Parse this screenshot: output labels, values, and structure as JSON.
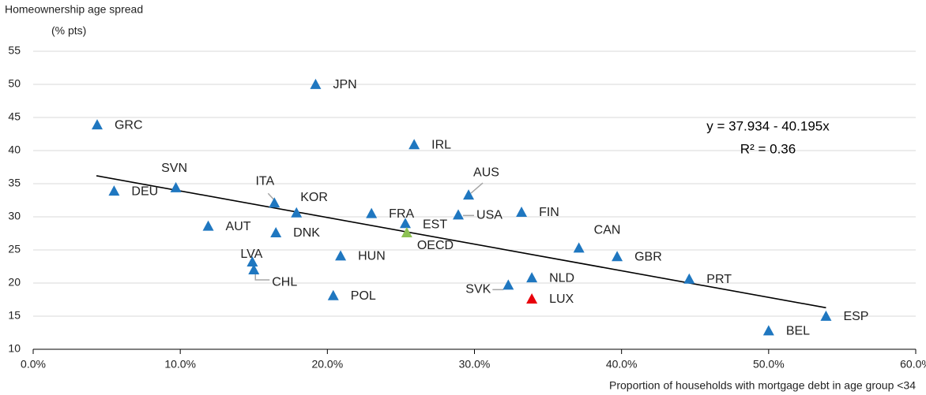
{
  "chart_data": {
    "type": "scatter",
    "ylabel": [
      "Homeownership age spread",
      "(% pts)"
    ],
    "xlabel": "Proportion of households with mortgage debt in age group <34",
    "xlim": [
      0,
      60
    ],
    "xticks": [
      {
        "value": 0,
        "label": "0.0%"
      },
      {
        "value": 10,
        "label": "10.0%"
      },
      {
        "value": 20,
        "label": "20.0%"
      },
      {
        "value": 30,
        "label": "30.0%"
      },
      {
        "value": 40,
        "label": "40.0%"
      },
      {
        "value": 50,
        "label": "50.0%"
      },
      {
        "value": 60,
        "label": "60.0%"
      }
    ],
    "ylim": [
      10,
      55
    ],
    "yticks": [
      10,
      15,
      20,
      25,
      30,
      35,
      40,
      45,
      50,
      55
    ],
    "grid": true,
    "points": [
      {
        "label": "GRC",
        "x": 4.35,
        "y": 43.8,
        "color": "#1f77c0"
      },
      {
        "label": "DEU",
        "x": 5.5,
        "y": 33.8,
        "color": "#1f77c0"
      },
      {
        "label": "SVN",
        "x": 9.7,
        "y": 34.3,
        "color": "#1f77c0"
      },
      {
        "label": "JPN",
        "x": 19.2,
        "y": 49.9,
        "color": "#1f77c0"
      },
      {
        "label": "IRL",
        "x": 25.9,
        "y": 40.8,
        "color": "#1f77c0"
      },
      {
        "label": "ITA",
        "x": 16.4,
        "y": 32.0,
        "color": "#1f77c0"
      },
      {
        "label": "KOR",
        "x": 17.9,
        "y": 30.5,
        "color": "#1f77c0"
      },
      {
        "label": "AUT",
        "x": 11.9,
        "y": 28.5,
        "color": "#1f77c0"
      },
      {
        "label": "DNK",
        "x": 16.5,
        "y": 27.5,
        "color": "#1f77c0"
      },
      {
        "label": "LVA",
        "x": 14.9,
        "y": 23.1,
        "color": "#1f77c0"
      },
      {
        "label": "CHL",
        "x": 15.0,
        "y": 21.9,
        "color": "#1f77c0"
      },
      {
        "label": "HUN",
        "x": 20.9,
        "y": 24.0,
        "color": "#1f77c0"
      },
      {
        "label": "POL",
        "x": 20.4,
        "y": 18.0,
        "color": "#1f77c0"
      },
      {
        "label": "FRA",
        "x": 23.0,
        "y": 30.4,
        "color": "#1f77c0"
      },
      {
        "label": "EST",
        "x": 25.3,
        "y": 28.9,
        "color": "#1f77c0"
      },
      {
        "label": "OECD",
        "x": 25.4,
        "y": 27.5,
        "color": "#8dc153"
      },
      {
        "label": "AUS",
        "x": 29.6,
        "y": 33.2,
        "color": "#1f77c0"
      },
      {
        "label": "USA",
        "x": 28.9,
        "y": 30.2,
        "color": "#1f77c0"
      },
      {
        "label": "FIN",
        "x": 33.2,
        "y": 30.6,
        "color": "#1f77c0"
      },
      {
        "label": "CAN",
        "x": 37.1,
        "y": 25.2,
        "color": "#1f77c0"
      },
      {
        "label": "GBR",
        "x": 39.7,
        "y": 23.9,
        "color": "#1f77c0"
      },
      {
        "label": "SVK",
        "x": 32.3,
        "y": 19.6,
        "color": "#1f77c0"
      },
      {
        "label": "NLD",
        "x": 33.9,
        "y": 20.7,
        "color": "#1f77c0"
      },
      {
        "label": "LUX",
        "x": 33.9,
        "y": 17.5,
        "color": "#e8000b"
      },
      {
        "label": "PRT",
        "x": 44.6,
        "y": 20.5,
        "color": "#1f77c0"
      },
      {
        "label": "BEL",
        "x": 50.0,
        "y": 12.7,
        "color": "#1f77c0"
      },
      {
        "label": "ESP",
        "x": 53.9,
        "y": 14.9,
        "color": "#1f77c0"
      }
    ],
    "trendline": {
      "equation": "y = 37.934 - 40.195x",
      "r2": "R² = 0.36",
      "x": [
        4.3,
        53.9
      ],
      "y": [
        36.2,
        16.27
      ],
      "color": "#000000"
    }
  }
}
